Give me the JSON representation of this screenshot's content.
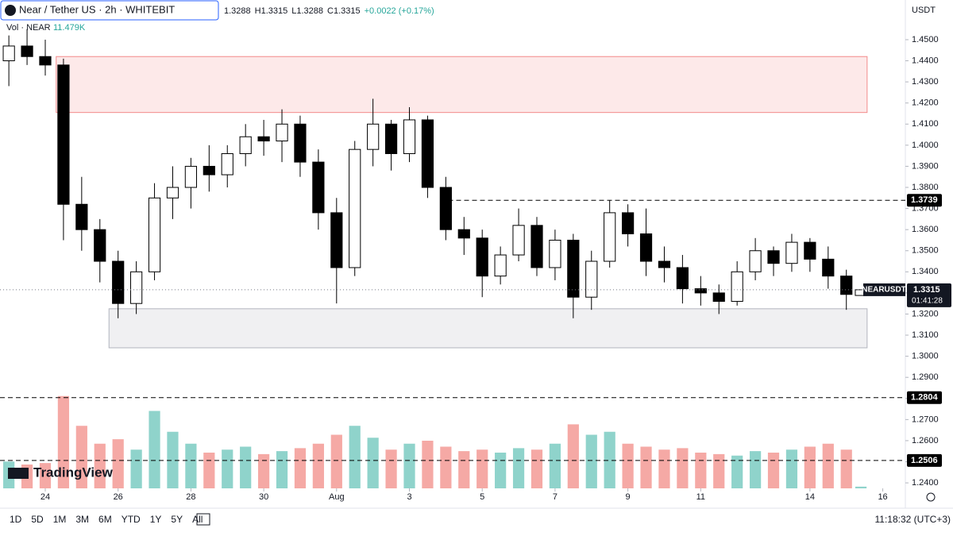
{
  "chart_data": {
    "type": "candlestick",
    "title": "Near / Tether US · 2h · WHITEBIT",
    "ohlc_header": [
      "1.3288",
      "H1.3315",
      "L1.3288",
      "C1.3315",
      "+0.0022 (+0.17%)"
    ],
    "volume_title": "Vol · NEAR",
    "volume_label": "11.479K",
    "currency": "USDT",
    "x": [
      23,
      23.5,
      24,
      24.5,
      25,
      25.5,
      26,
      26.5,
      27,
      27.5,
      28,
      28.5,
      29,
      29.5,
      30,
      30.5,
      31,
      31.5,
      32,
      32.5,
      33,
      33.5,
      34,
      34.5,
      35,
      35.5,
      36,
      36.5,
      37,
      37.5,
      38,
      38.5,
      39,
      39.5,
      40,
      40.5,
      41,
      41.5,
      42,
      42.5,
      43,
      43.5,
      44,
      44.5,
      45,
      45.5,
      46,
      46.4
    ],
    "open": [
      1.44,
      1.447,
      1.442,
      1.438,
      1.372,
      1.36,
      1.345,
      1.325,
      1.34,
      1.375,
      1.38,
      1.39,
      1.386,
      1.396,
      1.404,
      1.402,
      1.41,
      1.392,
      1.368,
      1.342,
      1.398,
      1.41,
      1.396,
      1.412,
      1.38,
      1.36,
      1.356,
      1.338,
      1.348,
      1.362,
      1.342,
      1.355,
      1.328,
      1.345,
      1.368,
      1.358,
      1.345,
      1.342,
      1.332,
      1.33,
      1.326,
      1.34,
      1.35,
      1.344,
      1.354,
      1.346,
      1.338,
      1.3288
    ],
    "high": [
      1.452,
      1.455,
      1.45,
      1.441,
      1.385,
      1.365,
      1.35,
      1.345,
      1.382,
      1.39,
      1.394,
      1.4,
      1.4,
      1.41,
      1.412,
      1.417,
      1.414,
      1.398,
      1.375,
      1.402,
      1.422,
      1.412,
      1.418,
      1.414,
      1.385,
      1.366,
      1.36,
      1.352,
      1.37,
      1.366,
      1.36,
      1.358,
      1.35,
      1.374,
      1.372,
      1.37,
      1.352,
      1.348,
      1.338,
      1.334,
      1.345,
      1.356,
      1.352,
      1.358,
      1.356,
      1.352,
      1.341,
      1.3315
    ],
    "low": [
      1.428,
      1.438,
      1.433,
      1.355,
      1.35,
      1.335,
      1.318,
      1.32,
      1.336,
      1.365,
      1.37,
      1.378,
      1.38,
      1.39,
      1.395,
      1.392,
      1.385,
      1.36,
      1.325,
      1.338,
      1.39,
      1.388,
      1.392,
      1.375,
      1.355,
      1.348,
      1.328,
      1.334,
      1.345,
      1.338,
      1.336,
      1.318,
      1.322,
      1.342,
      1.352,
      1.338,
      1.335,
      1.325,
      1.324,
      1.32,
      1.324,
      1.336,
      1.338,
      1.34,
      1.34,
      1.332,
      1.322,
      1.3288
    ],
    "close": [
      1.447,
      1.442,
      1.438,
      1.372,
      1.36,
      1.345,
      1.325,
      1.34,
      1.375,
      1.38,
      1.39,
      1.386,
      1.396,
      1.404,
      1.402,
      1.41,
      1.392,
      1.368,
      1.342,
      1.398,
      1.41,
      1.396,
      1.412,
      1.38,
      1.36,
      1.356,
      1.338,
      1.348,
      1.362,
      1.342,
      1.355,
      1.328,
      1.345,
      1.368,
      1.358,
      1.345,
      1.342,
      1.332,
      1.33,
      1.326,
      1.34,
      1.35,
      1.344,
      1.354,
      1.346,
      1.338,
      1.3293,
      1.3315
    ],
    "volume": [
      180,
      160,
      170,
      620,
      420,
      300,
      330,
      260,
      520,
      380,
      300,
      240,
      260,
      280,
      230,
      250,
      270,
      300,
      360,
      420,
      340,
      260,
      300,
      320,
      280,
      250,
      260,
      240,
      270,
      260,
      300,
      430,
      360,
      380,
      300,
      280,
      260,
      270,
      240,
      230,
      220,
      250,
      240,
      260,
      280,
      300,
      260,
      11.479
    ],
    "vlim": [
      0,
      800
    ],
    "xlim": [
      22.757,
      47.62
    ],
    "xticks": [
      24,
      26,
      28,
      30,
      {
        "value": 32,
        "label": "Aug"
      },
      {
        "value": 34,
        "label": "3"
      },
      {
        "value": 36,
        "label": "5"
      },
      {
        "value": 38,
        "label": "7"
      },
      {
        "value": 40,
        "label": "9"
      },
      {
        "value": 42,
        "label": "11"
      },
      {
        "value": 45,
        "label": "14"
      },
      {
        "value": 47,
        "label": "16"
      }
    ],
    "ylim": [
      1.2374,
      1.4688
    ],
    "yticks": [
      {
        "value": 1.24,
        "label": "1.2400"
      },
      {
        "value": 1.25,
        "label": "1.2500"
      },
      {
        "value": 1.26,
        "label": "1.2600"
      },
      {
        "value": 1.27,
        "label": "1.2700"
      },
      {
        "value": 1.28,
        "label": "1.2800"
      },
      {
        "value": 1.29,
        "label": "1.2900"
      },
      {
        "value": 1.3,
        "label": "1.3000"
      },
      {
        "value": 1.31,
        "label": "1.3100"
      },
      {
        "value": 1.32,
        "label": "1.3200"
      },
      {
        "value": 1.33,
        "label": "1.3300"
      },
      {
        "value": 1.34,
        "label": "1.3400"
      },
      {
        "value": 1.35,
        "label": "1.3500"
      },
      {
        "value": 1.36,
        "label": "1.3600"
      },
      {
        "value": 1.37,
        "label": "1.3700"
      },
      {
        "value": 1.38,
        "label": "1.3800"
      },
      {
        "value": 1.39,
        "label": "1.3900"
      },
      {
        "value": 1.4,
        "label": "1.4000"
      },
      {
        "value": 1.41,
        "label": "1.4100"
      },
      {
        "value": 1.42,
        "label": "1.4200"
      },
      {
        "value": 1.43,
        "label": "1.4300"
      },
      {
        "value": 1.44,
        "label": "1.4400"
      },
      {
        "value": 1.45,
        "label": "1.4500"
      }
    ],
    "zones": [
      {
        "x0": 24.3,
        "x1": 46.57,
        "y0": 1.4155,
        "y1": 1.442,
        "color": "#fde3e3",
        "border": "#f28b8b"
      },
      {
        "x0": 25.75,
        "x1": 46.57,
        "y0": 1.304,
        "y1": 1.3225,
        "color": "#ececef",
        "border": "#b2b5be"
      }
    ],
    "levels": [
      {
        "value": 1.3739,
        "from": 34.85
      },
      {
        "value": 1.2804
      },
      {
        "value": 1.2506
      }
    ],
    "last_label": {
      "symbol": "NEARUSDT",
      "countdown": "01:41:28"
    },
    "up_color": "#ffffff",
    "down_color": "#000000",
    "vol_up_color": "#8fd3cb",
    "vol_down_color": "#f5a9a5"
  },
  "ui": {
    "ranges": [
      "1D",
      "5D",
      "1M",
      "3M",
      "6M",
      "YTD",
      "1Y",
      "5Y",
      "All"
    ],
    "clock": "11:18:32 (UTC+3)",
    "logo": "TradingView"
  }
}
